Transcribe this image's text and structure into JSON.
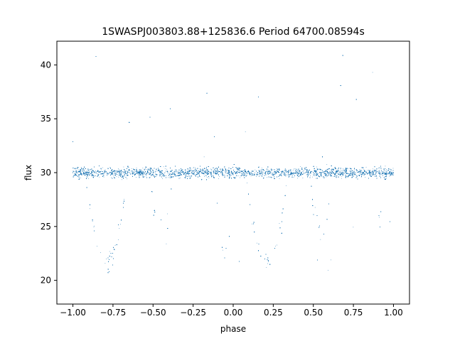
{
  "chart_data": {
    "type": "scatter",
    "title": "1SWASPJ003803.88+125836.6 Period 64700.08594s",
    "xlabel": "phase",
    "ylabel": "flux",
    "xlim": [
      -1.1,
      1.1
    ],
    "ylim": [
      17.8,
      42.2
    ],
    "x_ticks": [
      -1.0,
      -0.75,
      -0.5,
      -0.25,
      0.0,
      0.25,
      0.5,
      0.75,
      1.0
    ],
    "x_tick_labels": [
      "−1.00",
      "−0.75",
      "−0.50",
      "−0.25",
      "0.00",
      "0.25",
      "0.50",
      "0.75",
      "1.00"
    ],
    "y_ticks": [
      20,
      25,
      30,
      35,
      40
    ],
    "y_tick_labels": [
      "20",
      "25",
      "30",
      "35",
      "40"
    ],
    "grid": false,
    "legend": "none",
    "marker_color": "#1f77b4",
    "series": [
      {
        "baseline_flux": 30.0,
        "baseline_scatter": 0.6,
        "phase_range": [
          -1.0,
          1.0
        ],
        "primary_eclipse": {
          "phases": [
            -0.79,
            0.21
          ],
          "minimum_flux": 21.8,
          "half_width": 0.13
        },
        "secondary_dips": {
          "phases": [
            -0.45,
            -0.05,
            0.55,
            0.95
          ],
          "minimum_flux": 22.0,
          "half_width": 0.07
        },
        "flares": {
          "phases": [
            -0.4,
            0.6
          ],
          "peak_flux": 36.5
        },
        "approx_points": 24000
      }
    ]
  }
}
